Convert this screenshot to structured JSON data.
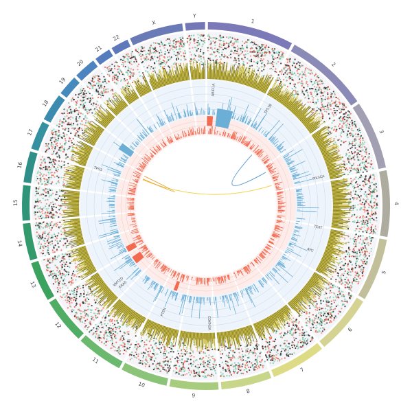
{
  "chart_data": {
    "type": "circos",
    "title": "",
    "chromosomes": [
      {
        "name": "1",
        "size": 249,
        "color": "#7b79b8"
      },
      {
        "name": "2",
        "size": 243,
        "color": "#8b8ab6"
      },
      {
        "name": "3",
        "size": 198,
        "color": "#a29fb3"
      },
      {
        "name": "4",
        "size": 191,
        "color": "#aeab9f"
      },
      {
        "name": "5",
        "size": 181,
        "color": "#c2c09a"
      },
      {
        "name": "6",
        "size": 171,
        "color": "#d4d394"
      },
      {
        "name": "7",
        "size": 159,
        "color": "#dddb86"
      },
      {
        "name": "8",
        "size": 146,
        "color": "#c8d68a"
      },
      {
        "name": "9",
        "size": 141,
        "color": "#a8cc7e"
      },
      {
        "name": "10",
        "size": 136,
        "color": "#8bc478"
      },
      {
        "name": "11",
        "size": 135,
        "color": "#6bb86f"
      },
      {
        "name": "12",
        "size": 133,
        "color": "#52ad64"
      },
      {
        "name": "13",
        "size": 115,
        "color": "#3ba35f"
      },
      {
        "name": "14",
        "size": 107,
        "color": "#329a6c"
      },
      {
        "name": "15",
        "size": 102,
        "color": "#2f9478"
      },
      {
        "name": "16",
        "size": 90,
        "color": "#2f8f88"
      },
      {
        "name": "17",
        "size": 83,
        "color": "#3590a0"
      },
      {
        "name": "18",
        "size": 80,
        "color": "#3b8bb1"
      },
      {
        "name": "19",
        "size": 59,
        "color": "#4589bd"
      },
      {
        "name": "20",
        "size": 64,
        "color": "#4d83bf"
      },
      {
        "name": "21",
        "size": 47,
        "color": "#557dbd"
      },
      {
        "name": "22",
        "size": 51,
        "color": "#5e79bb"
      },
      {
        "name": "X",
        "size": 155,
        "color": "#6a7ab7"
      },
      {
        "name": "Y",
        "size": 57,
        "color": "#7477b5"
      }
    ],
    "tracks": {
      "mutation_scatter": {
        "point_colors": [
          "#e8604c",
          "#6cc3a0",
          "#2b2b2b",
          "#f08c7c",
          "#8fd4b6"
        ]
      },
      "bar_track": {
        "color": "#c8b832"
      },
      "copy_gain": {
        "color": "#6baed6"
      },
      "copy_loss": {
        "color": "#f26b50"
      }
    },
    "gene_labels": [
      {
        "gene": "ARID1A",
        "chrom": "1",
        "pos": 27
      },
      {
        "gene": "TP53B",
        "chrom": "2",
        "pos": 35
      },
      {
        "gene": "PIK3CA",
        "chrom": "3",
        "pos": 179
      },
      {
        "gene": "TERT",
        "chrom": "5",
        "pos": 1
      },
      {
        "gene": "APC",
        "chrom": "5",
        "pos": 112
      },
      {
        "gene": "KRAS",
        "chrom": "12",
        "pos": 25
      },
      {
        "gene": "PTEN",
        "chrom": "10",
        "pos": 87
      },
      {
        "gene": "CDKN2A",
        "chrom": "9",
        "pos": 21
      },
      {
        "gene": "TP53",
        "chrom": "17",
        "pos": 7
      },
      {
        "gene": "KMT2D",
        "chrom": "12",
        "pos": 49
      }
    ],
    "links": [
      {
        "from": {
          "chrom": "17",
          "pos": 40
        },
        "to": {
          "chrom": "3",
          "pos": 150
        },
        "color": "#f2d24a"
      },
      {
        "from": {
          "chrom": "17",
          "pos": 45
        },
        "to": {
          "chrom": "17",
          "pos": 70
        },
        "color": "#e6a23a"
      },
      {
        "from": {
          "chrom": "2",
          "pos": 120
        },
        "to": {
          "chrom": "3",
          "pos": 40
        },
        "color": "#5a9bd4"
      }
    ]
  }
}
